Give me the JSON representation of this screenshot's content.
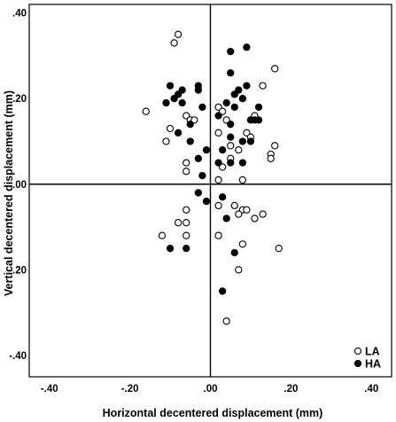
{
  "chart_data": {
    "type": "scatter",
    "xlabel": "Horizontal decentered displacement (mm)",
    "ylabel": "Vertical decentered displacement (mm)",
    "xlim": [
      -0.45,
      0.45
    ],
    "ylim": [
      -0.45,
      0.42
    ],
    "x_ticks": [
      -0.4,
      -0.2,
      0.0,
      0.2,
      0.4
    ],
    "y_ticks": [
      -0.4,
      -0.2,
      0.0,
      0.2,
      0.4
    ],
    "x_tick_labels": [
      "-.40",
      "-.20",
      ".00",
      ".20",
      ".40"
    ],
    "y_tick_labels": [
      "-.40",
      "-.20",
      ".00",
      ".20",
      ".40"
    ],
    "reference_lines": {
      "x": 0,
      "y": 0
    },
    "grid": false,
    "legend_position": "bottom-right",
    "series": [
      {
        "name": "LA",
        "marker": "open-circle",
        "color": "#000000",
        "points": [
          [
            -0.08,
            0.35
          ],
          [
            -0.09,
            0.33
          ],
          [
            -0.16,
            0.17
          ],
          [
            -0.06,
            0.16
          ],
          [
            -0.1,
            0.13
          ],
          [
            -0.05,
            0.15
          ],
          [
            -0.11,
            0.1
          ],
          [
            -0.06,
            0.05
          ],
          [
            -0.06,
            0.03
          ],
          [
            -0.04,
            0.15
          ],
          [
            -0.06,
            -0.06
          ],
          [
            -0.06,
            -0.09
          ],
          [
            -0.08,
            -0.09
          ],
          [
            -0.12,
            -0.12
          ],
          [
            -0.06,
            -0.12
          ],
          [
            0.02,
            0.18
          ],
          [
            0.02,
            0.12
          ],
          [
            0.04,
            0.15
          ],
          [
            0.05,
            0.09
          ],
          [
            0.07,
            0.08
          ],
          [
            0.05,
            0.06
          ],
          [
            0.03,
            0.04
          ],
          [
            0.02,
            0.01
          ],
          [
            0.08,
            0.01
          ],
          [
            0.13,
            0.23
          ],
          [
            0.11,
            0.16
          ],
          [
            0.09,
            0.12
          ],
          [
            0.1,
            0.11
          ],
          [
            0.16,
            0.27
          ],
          [
            0.16,
            0.09
          ],
          [
            0.15,
            0.07
          ],
          [
            0.15,
            0.06
          ],
          [
            0.03,
            0.17
          ],
          [
            0.02,
            -0.05
          ],
          [
            0.06,
            -0.05
          ],
          [
            0.08,
            -0.06
          ],
          [
            0.09,
            -0.06
          ],
          [
            0.11,
            -0.08
          ],
          [
            0.13,
            -0.07
          ],
          [
            0.07,
            -0.07
          ],
          [
            0.02,
            -0.12
          ],
          [
            0.08,
            -0.14
          ],
          [
            0.07,
            -0.2
          ],
          [
            0.17,
            -0.15
          ],
          [
            0.04,
            -0.32
          ]
        ]
      },
      {
        "name": "HA",
        "marker": "filled-circle",
        "color": "#000000",
        "points": [
          [
            -0.1,
            0.23
          ],
          [
            -0.08,
            0.21
          ],
          [
            -0.07,
            0.22
          ],
          [
            -0.09,
            0.2
          ],
          [
            -0.11,
            0.19
          ],
          [
            -0.07,
            0.19
          ],
          [
            -0.03,
            0.23
          ],
          [
            -0.03,
            0.22
          ],
          [
            -0.02,
            0.18
          ],
          [
            -0.05,
            0.14
          ],
          [
            -0.08,
            0.12
          ],
          [
            -0.05,
            0.1
          ],
          [
            -0.01,
            0.08
          ],
          [
            -0.03,
            0.06
          ],
          [
            -0.02,
            0.02
          ],
          [
            -0.03,
            -0.02
          ],
          [
            -0.01,
            -0.04
          ],
          [
            0.03,
            -0.03
          ],
          [
            0.05,
            0.31
          ],
          [
            0.09,
            0.32
          ],
          [
            0.05,
            0.26
          ],
          [
            0.07,
            0.22
          ],
          [
            0.09,
            0.23
          ],
          [
            0.06,
            0.21
          ],
          [
            0.04,
            0.19
          ],
          [
            0.06,
            0.18
          ],
          [
            0.08,
            0.2
          ],
          [
            0.02,
            0.16
          ],
          [
            0.05,
            0.14
          ],
          [
            0.1,
            0.15
          ],
          [
            0.11,
            0.15
          ],
          [
            0.12,
            0.15
          ],
          [
            0.12,
            0.18
          ],
          [
            0.05,
            0.11
          ],
          [
            0.08,
            0.1
          ],
          [
            0.1,
            0.1
          ],
          [
            0.03,
            0.08
          ],
          [
            0.02,
            0.05
          ],
          [
            0.05,
            0.05
          ],
          [
            0.08,
            0.05
          ],
          [
            0.04,
            -0.08
          ],
          [
            -0.1,
            -0.15
          ],
          [
            -0.06,
            -0.15
          ],
          [
            0.06,
            -0.16
          ],
          [
            0.03,
            -0.25
          ]
        ]
      }
    ]
  }
}
